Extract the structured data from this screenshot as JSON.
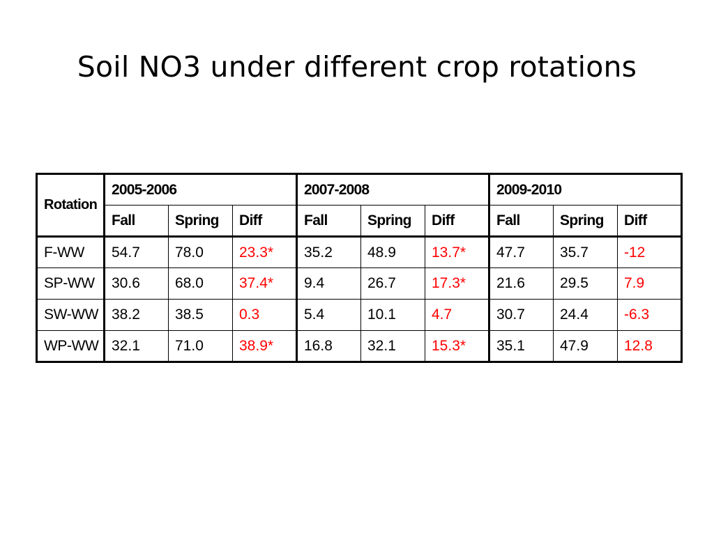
{
  "title": "Soil NO3 under different crop rotations",
  "table": {
    "rotation_header": "Rotation",
    "year_groups": [
      "2005-2006",
      "2007-2008",
      "2009-2010"
    ],
    "sub_headers": [
      "Fall",
      "Spring",
      "Diff"
    ],
    "rows": [
      {
        "label": "F-WW",
        "cells": [
          "54.7",
          "78.0",
          "23.3*",
          "35.2",
          "48.9",
          "13.7*",
          "47.7",
          "35.7",
          "-12"
        ]
      },
      {
        "label": "SP-WW",
        "cells": [
          "30.6",
          "68.0",
          "37.4*",
          "9.4",
          "26.7",
          "17.3*",
          "21.6",
          "29.5",
          "7.9"
        ]
      },
      {
        "label": "SW-WW",
        "cells": [
          "38.2",
          "38.5",
          "0.3",
          "5.4",
          "10.1",
          "4.7",
          "30.7",
          "24.4",
          "-6.3"
        ]
      },
      {
        "label": "WP-WW",
        "cells": [
          "32.1",
          "71.0",
          "38.9*",
          "16.8",
          "32.1",
          "15.3*",
          "35.1",
          "47.9",
          "12.8"
        ]
      }
    ]
  },
  "colors": {
    "diff_text": "#ff0000",
    "text": "#000000",
    "background": "#ffffff"
  }
}
